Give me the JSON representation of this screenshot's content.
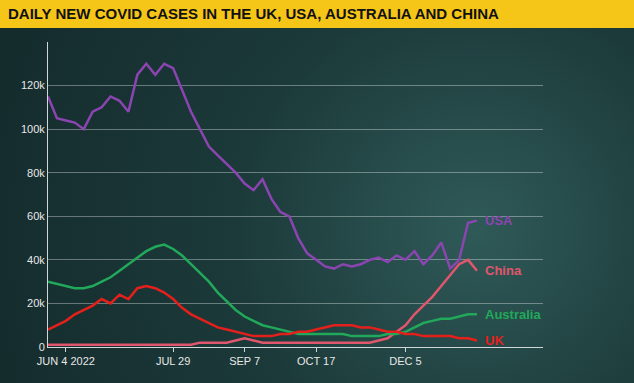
{
  "chart_data": {
    "type": "line",
    "title": "DAILY NEW COVID CASES IN THE UK, USA, AUSTRALIA AND CHINA",
    "categories": [
      null,
      null,
      "JUN 4 2022",
      null,
      null,
      null,
      null,
      null,
      null,
      null,
      null,
      null,
      null,
      null,
      "JUL 29",
      null,
      null,
      null,
      null,
      null,
      null,
      null,
      "SEP 7",
      null,
      null,
      null,
      null,
      null,
      null,
      null,
      "OCT 17",
      null,
      null,
      null,
      null,
      null,
      null,
      null,
      null,
      null,
      "DEC 5",
      null,
      null,
      null,
      null,
      null,
      null,
      null,
      null
    ],
    "series": [
      {
        "name": "USA",
        "color": "#8a45b0",
        "values": [
          115000,
          105000,
          104000,
          103000,
          100000,
          108000,
          110000,
          115000,
          113000,
          108000,
          125000,
          130000,
          125000,
          130000,
          128000,
          118000,
          108000,
          100000,
          92000,
          88000,
          84000,
          80000,
          75000,
          72000,
          77000,
          68000,
          62000,
          60000,
          50000,
          43000,
          40000,
          37000,
          36000,
          38000,
          37000,
          38000,
          40000,
          41000,
          39000,
          42000,
          40000,
          44000,
          38000,
          42000,
          48000,
          36000,
          40000,
          57000,
          58000
        ]
      },
      {
        "name": "China",
        "color": "#e0566c",
        "values": [
          1000,
          1000,
          1000,
          1000,
          1000,
          1000,
          1000,
          1000,
          1000,
          1000,
          1000,
          1000,
          1000,
          1000,
          1000,
          1000,
          1000,
          2000,
          2000,
          2000,
          2000,
          3000,
          4000,
          3000,
          2000,
          2000,
          2000,
          2000,
          2000,
          2000,
          2000,
          2000,
          2000,
          2000,
          2000,
          2000,
          2000,
          3000,
          4000,
          7000,
          10000,
          15000,
          19000,
          23000,
          28000,
          33000,
          38000,
          40000,
          35000
        ]
      },
      {
        "name": "Australia",
        "color": "#22a85a",
        "values": [
          30000,
          29000,
          28000,
          27000,
          27000,
          28000,
          30000,
          32000,
          35000,
          38000,
          41000,
          44000,
          46000,
          47000,
          45000,
          42000,
          38000,
          34000,
          30000,
          25000,
          21000,
          17000,
          14000,
          12000,
          10000,
          9000,
          8000,
          7000,
          6000,
          6000,
          6000,
          6000,
          6000,
          6000,
          5000,
          5000,
          5000,
          5000,
          6000,
          6000,
          7000,
          9000,
          11000,
          12000,
          13000,
          13000,
          14000,
          15000,
          15000
        ]
      },
      {
        "name": "UK",
        "color": "#e3201b",
        "values": [
          8000,
          10000,
          12000,
          15000,
          17000,
          19000,
          22000,
          20000,
          24000,
          22000,
          27000,
          28000,
          27000,
          25000,
          22000,
          18000,
          15000,
          13000,
          11000,
          9000,
          8000,
          7000,
          6000,
          5000,
          5000,
          5000,
          6000,
          6000,
          7000,
          7000,
          8000,
          9000,
          10000,
          10000,
          10000,
          9000,
          9000,
          8000,
          7000,
          7000,
          6000,
          6000,
          5000,
          5000,
          5000,
          5000,
          4000,
          4000,
          3000
        ]
      }
    ],
    "ylim": [
      0,
      140000
    ],
    "yticks": [
      0,
      {
        "value": 20000,
        "label": "20k"
      },
      {
        "value": 40000,
        "label": "40k"
      },
      {
        "value": 60000,
        "label": "60k"
      },
      {
        "value": 80000,
        "label": "80k"
      },
      {
        "value": 100000,
        "label": "100k"
      },
      {
        "value": 120000,
        "label": "120k"
      }
    ],
    "grid": true
  }
}
